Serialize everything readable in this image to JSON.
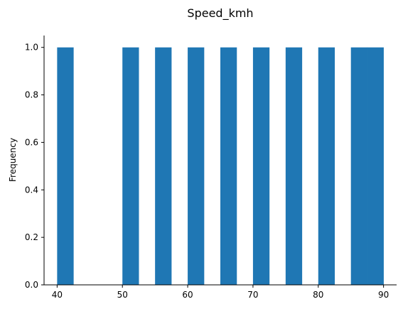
{
  "chart_data": {
    "type": "bar",
    "title": "Speed_kmh",
    "xlabel": "",
    "ylabel": "Frequency",
    "xlim": [
      38,
      92
    ],
    "ylim": [
      0,
      1.05
    ],
    "x_ticks": [
      40,
      50,
      60,
      70,
      80,
      90
    ],
    "x_tick_labels": [
      "40",
      "50",
      "60",
      "70",
      "80",
      "90"
    ],
    "y_ticks": [
      0,
      0.2,
      0.4,
      0.6,
      0.8,
      1.0
    ],
    "y_tick_labels": [
      "0.0",
      "0.2",
      "0.4",
      "0.6",
      "0.8",
      "1.0"
    ],
    "grid": false,
    "bar_color": "#1f77b4",
    "bins": [
      {
        "start": 40.0,
        "end": 42.5,
        "value": 1
      },
      {
        "start": 50.0,
        "end": 52.5,
        "value": 1
      },
      {
        "start": 55.0,
        "end": 57.5,
        "value": 1
      },
      {
        "start": 60.0,
        "end": 62.5,
        "value": 1
      },
      {
        "start": 65.0,
        "end": 67.5,
        "value": 1
      },
      {
        "start": 70.0,
        "end": 72.5,
        "value": 1
      },
      {
        "start": 75.0,
        "end": 77.5,
        "value": 1
      },
      {
        "start": 80.0,
        "end": 82.5,
        "value": 1
      },
      {
        "start": 85.0,
        "end": 87.5,
        "value": 1
      },
      {
        "start": 87.5,
        "end": 90.0,
        "value": 1
      }
    ]
  }
}
